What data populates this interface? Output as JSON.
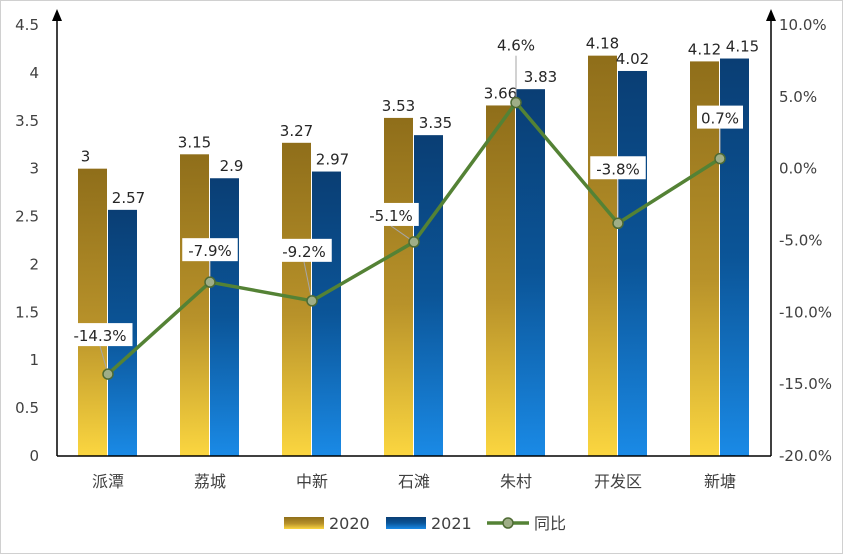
{
  "chart_data": {
    "type": "bar",
    "categories": [
      "派潭",
      "荔城",
      "中新",
      "石滩",
      "朱村",
      "开发区",
      "新塘"
    ],
    "series": [
      {
        "name": "2020",
        "values": [
          3,
          3.15,
          3.27,
          3.53,
          3.66,
          4.18,
          4.12
        ],
        "labels": [
          "3",
          "3.15",
          "3.27",
          "3.53",
          "3.66",
          "4.18",
          "4.12"
        ],
        "color": "#a07c1c"
      },
      {
        "name": "2021",
        "values": [
          2.57,
          2.9,
          2.97,
          3.35,
          3.83,
          4.02,
          4.15
        ],
        "labels": [
          "2.57",
          "2.9",
          "2.97",
          "3.35",
          "3.83",
          "4.02",
          "4.15"
        ],
        "color": "#0a4f8c"
      }
    ],
    "line_series": {
      "name": "同比",
      "values": [
        -14.3,
        -7.9,
        -9.2,
        -5.1,
        4.6,
        -3.8,
        0.7
      ],
      "labels": [
        "-14.3%",
        "-7.9%",
        "-9.2%",
        "-5.1%",
        "4.6%",
        "-3.8%",
        "0.7%"
      ],
      "color": "#548235",
      "axis": "right"
    },
    "ylim": [
      0,
      4.5
    ],
    "y_ticks": [
      "0",
      "0.5",
      "1",
      "1.5",
      "2",
      "2.5",
      "3",
      "3.5",
      "4",
      "4.5"
    ],
    "y2lim": [
      -20,
      10
    ],
    "y2_ticks": [
      "-20.0%",
      "-15.0%",
      "-10.0%",
      "-5.0%",
      "0.0%",
      "5.0%",
      "10.0%"
    ],
    "legend_position": "bottom",
    "title": "",
    "xlabel": "",
    "ylabel": ""
  }
}
